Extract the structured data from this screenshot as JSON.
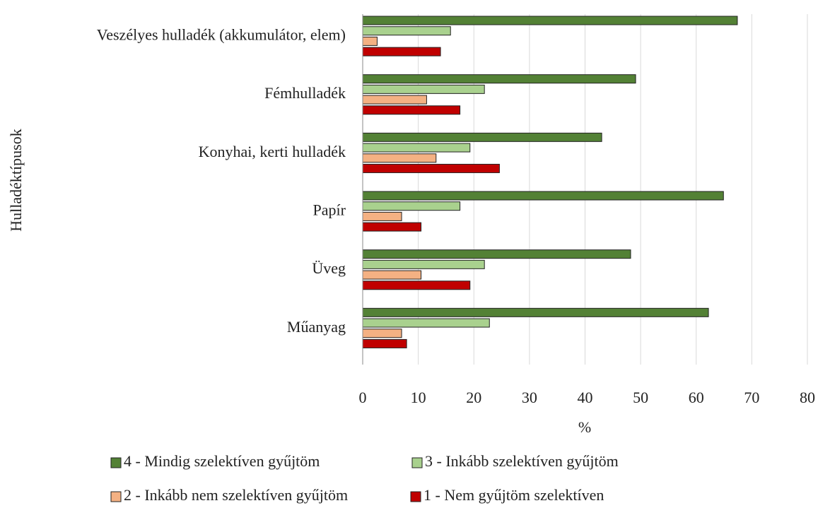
{
  "chart_data": {
    "type": "barh",
    "ylabel": "Hulladéktípusok",
    "xlabel": "%",
    "categories": [
      "Veszélyes hulladék (akkumulátor, elem)",
      "Fémhulladék",
      "Konyhai, kerti hulladék",
      "Papír",
      "Üveg",
      "Műanyag"
    ],
    "series": [
      {
        "name": "4 - Mindig szelektíven gyűjtöm",
        "color": "#538135",
        "values": [
          67.4,
          49.1,
          43.0,
          64.9,
          48.2,
          62.2
        ]
      },
      {
        "name": "3 - Inkább szelektíven gyűjtöm",
        "color": "#a9d18e",
        "values": [
          15.8,
          21.9,
          19.3,
          17.5,
          21.9,
          22.8
        ]
      },
      {
        "name": "2 - Inkább nem szelektíven gyűjtöm",
        "color": "#f4b183",
        "values": [
          2.6,
          11.5,
          13.2,
          7.0,
          10.5,
          7.0
        ]
      },
      {
        "name": "1 - Nem gyűjtöm szelektíven",
        "color": "#c00000",
        "values": [
          14.0,
          17.5,
          24.6,
          10.5,
          19.3,
          7.9
        ]
      }
    ],
    "xlim": [
      0,
      80
    ],
    "xticks": [
      0,
      10,
      20,
      30,
      40,
      50,
      60,
      70,
      80
    ],
    "grid": true,
    "legend": "bottom"
  }
}
